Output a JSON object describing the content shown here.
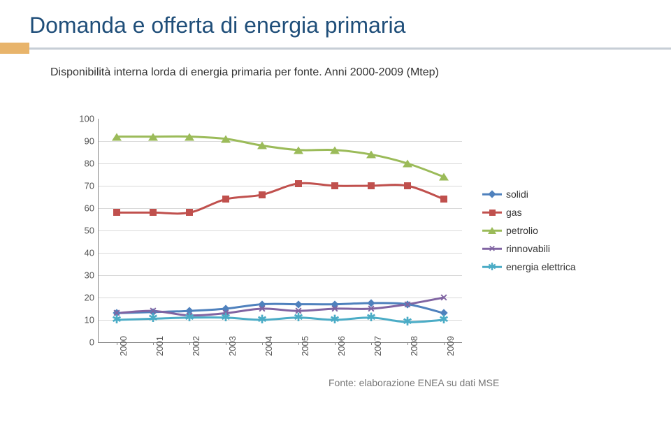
{
  "title": "Domanda e offerta di energia primaria",
  "subtitle": "Disponibilità interna lorda di energia primaria per fonte. Anni 2000-2009 (Mtep)",
  "source_note": "Fonte: elaborazione ENEA su dati MSE",
  "colors": {
    "title": "#1f4e79",
    "accent_block": "#e8b46b",
    "accent_line": "#c7ced6",
    "subtitle": "#333333",
    "grid": "#d9d9d9",
    "axis": "#888888",
    "tick_text": "#555555",
    "source": "#777777",
    "background": "#ffffff"
  },
  "chart": {
    "type": "line",
    "ylim": [
      0,
      100
    ],
    "ytick_step": 10,
    "categories": [
      "2000",
      "2001",
      "2002",
      "2003",
      "2004",
      "2005",
      "2006",
      "2007",
      "2008",
      "2009"
    ],
    "line_width": 3,
    "marker_size": 10,
    "series": [
      {
        "key": "solidi",
        "label": "solidi",
        "color": "#4f81bd",
        "marker": "diamond",
        "values": [
          13,
          13.5,
          14,
          15,
          17,
          17,
          17,
          17.5,
          17,
          13
        ]
      },
      {
        "key": "gas",
        "label": "gas",
        "color": "#c0504d",
        "marker": "square",
        "values": [
          58,
          58,
          58,
          64,
          66,
          71,
          70,
          70,
          70,
          64
        ]
      },
      {
        "key": "petrolio",
        "label": "petrolio",
        "color": "#9bbb59",
        "marker": "triangle",
        "values": [
          92,
          92,
          92,
          91,
          88,
          86,
          86,
          84,
          80,
          74
        ]
      },
      {
        "key": "rinnovabili",
        "label": "rinnovabili",
        "color": "#8064a2",
        "marker": "x",
        "values": [
          13,
          14,
          12,
          13,
          15,
          14,
          15,
          15,
          17,
          20
        ]
      },
      {
        "key": "energia_elettrica",
        "label": "energia elettrica",
        "color": "#4bacc6",
        "marker": "star",
        "values": [
          10,
          10.5,
          11,
          11,
          10,
          11,
          10,
          11,
          9,
          10
        ]
      }
    ]
  }
}
